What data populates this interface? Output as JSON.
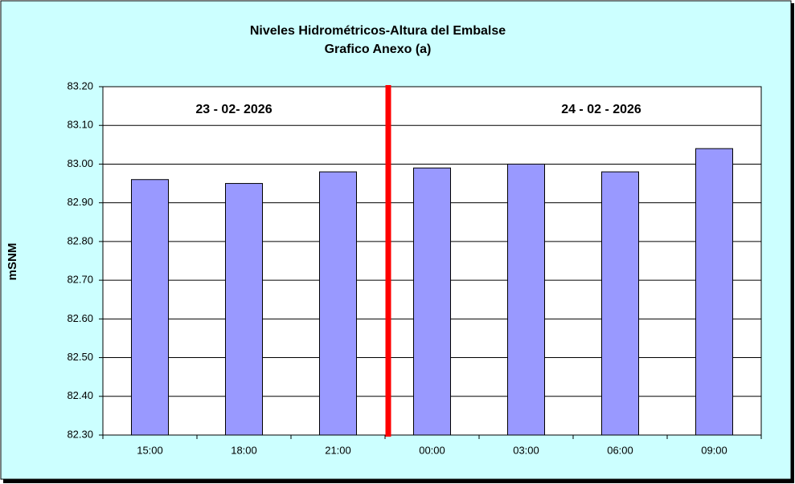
{
  "chart_data": {
    "type": "bar",
    "title": "Niveles Hidrométricos-Altura del Embalse",
    "subtitle": "Grafico Anexo (a)",
    "y_label": "mSNM",
    "annotations": [
      "23 - 02- 2026",
      "24 - 02 - 2026"
    ],
    "categories": [
      "15:00",
      "18:00",
      "21:00",
      "00:00",
      "03:00",
      "06:00",
      "09:00"
    ],
    "values": [
      82.96,
      82.95,
      82.98,
      82.99,
      83.0,
      82.98,
      83.04
    ],
    "color": "#9999ff",
    "ylim": [
      82.3,
      83.2
    ],
    "yticks": [
      {
        "value": 82.3,
        "label": "82.30"
      },
      {
        "value": 82.4,
        "label": "82.40"
      },
      {
        "value": 82.5,
        "label": "82.50"
      },
      {
        "value": 82.6,
        "label": "82.60"
      },
      {
        "value": 82.7,
        "label": "82.70"
      },
      {
        "value": 82.8,
        "label": "82.80"
      },
      {
        "value": 82.9,
        "label": "82.90"
      },
      {
        "value": 83.0,
        "label": "83.00"
      },
      {
        "value": 83.1,
        "label": "83.10"
      },
      {
        "value": 83.2,
        "label": "83.20"
      }
    ],
    "grid": true
  }
}
